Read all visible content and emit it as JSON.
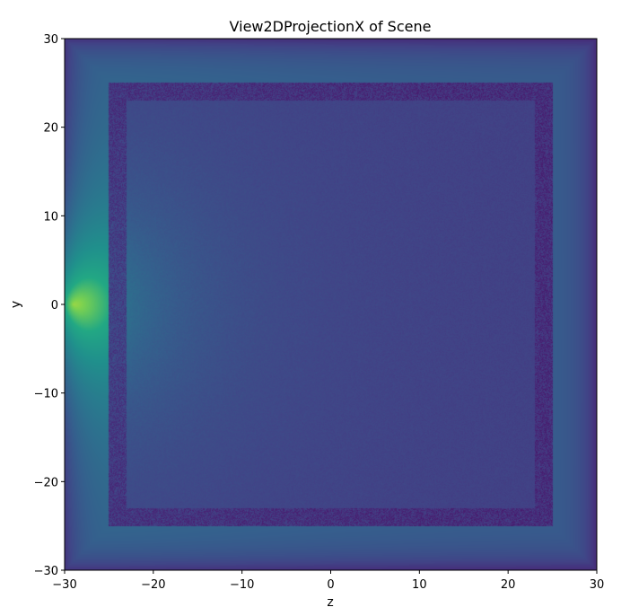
{
  "chart_data": {
    "type": "heatmap",
    "title": "View2DProjectionX of Scene",
    "xlabel": "z",
    "ylabel": "y",
    "xlim": [
      -30,
      30
    ],
    "ylim": [
      -30,
      30
    ],
    "x_ticks": [
      -30,
      -20,
      -10,
      0,
      10,
      20,
      30
    ],
    "y_ticks": [
      -30,
      -20,
      -10,
      0,
      10,
      20,
      30
    ],
    "x_tick_labels": [
      "−30",
      "−20",
      "−10",
      "0",
      "10",
      "20",
      "30"
    ],
    "y_tick_labels": [
      "−30",
      "−20",
      "−10",
      "0",
      "10",
      "20",
      "30"
    ],
    "colormap": "viridis",
    "grid": false,
    "features": {
      "hotspot": {
        "z": -29,
        "y": 0
      },
      "box_outer": {
        "z": [
          -25,
          25
        ],
        "y": [
          -25,
          25
        ]
      },
      "box_wall_thickness": 2
    }
  }
}
